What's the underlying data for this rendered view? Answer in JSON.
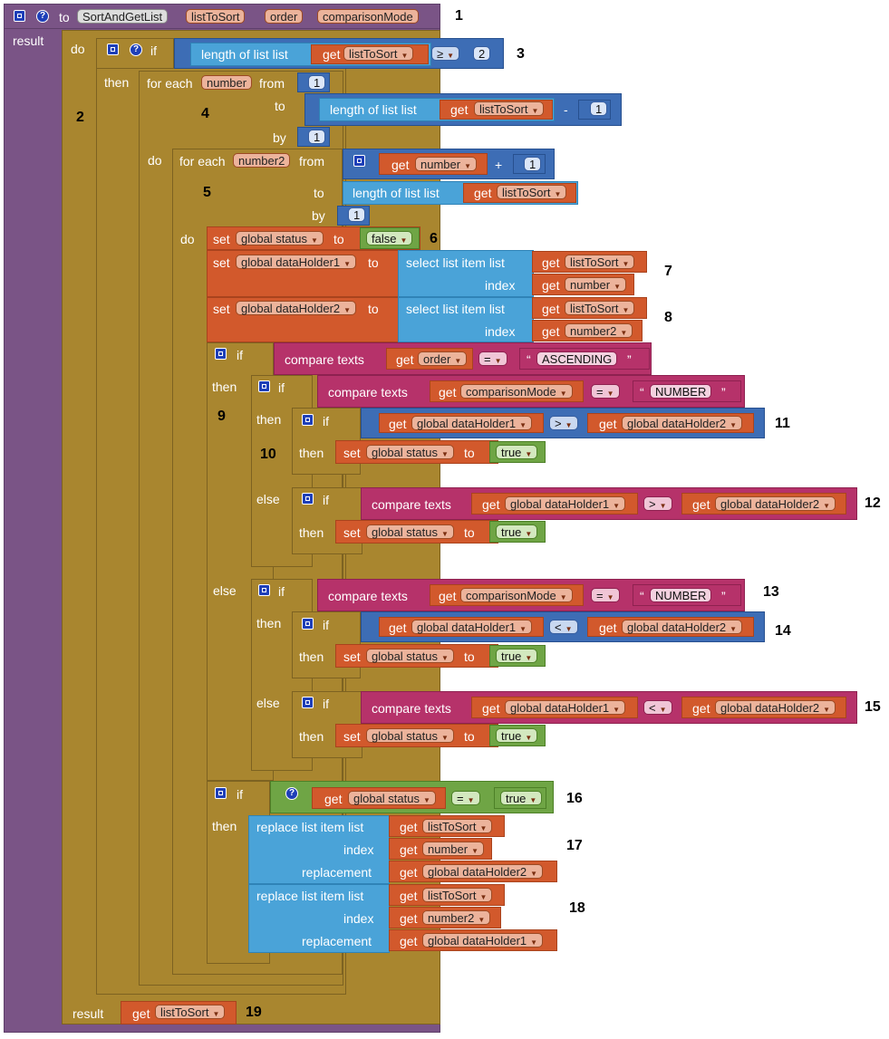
{
  "procedure": {
    "keyword": "to",
    "name": "SortAndGetList",
    "params": [
      "listToSort",
      "order",
      "comparisonMode"
    ],
    "result_label": "result"
  },
  "words": {
    "do": "do",
    "then": "then",
    "else": "else",
    "if": "if",
    "for_each": "for each",
    "from": "from",
    "to": "to",
    "by": "by",
    "set": "set",
    "get": "get",
    "result": "result",
    "length_of_list": "length of list",
    "list": "list",
    "select_list_item": "select list item",
    "index": "index",
    "compare_texts": "compare texts",
    "replace_list_item": "replace list item",
    "replacement": "replacement"
  },
  "vars": {
    "number": "number",
    "number2": "number2",
    "status": "global status",
    "dh1": "global dataHolder1",
    "dh2": "global dataHolder2"
  },
  "values": {
    "two": "2",
    "one": "1",
    "false": "false",
    "true": "true",
    "ascending": "ASCENDING",
    "number_str": "NUMBER"
  },
  "ops": {
    "gte": "≥",
    "minus": "-",
    "plus": "+",
    "eq": "=",
    "gt": ">",
    "lt": "<"
  },
  "quote_open": "“",
  "quote_close": "”",
  "annotations": [
    "1",
    "2",
    "3",
    "4",
    "5",
    "6",
    "7",
    "8",
    "9",
    "10",
    "11",
    "12",
    "13",
    "14",
    "15",
    "16",
    "17",
    "18",
    "19"
  ]
}
